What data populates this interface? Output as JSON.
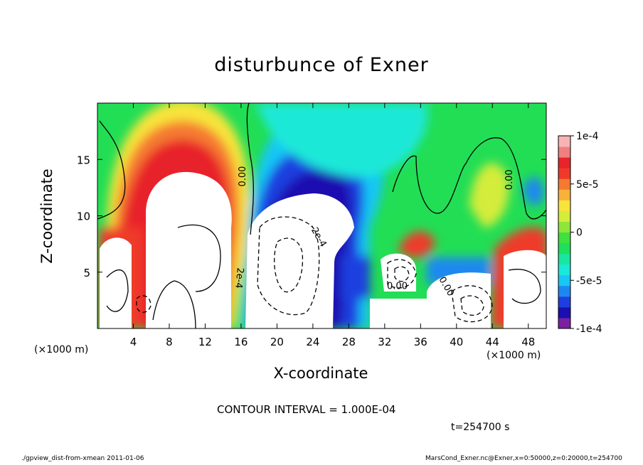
{
  "title": "disturbunce of Exner",
  "footer": {
    "left": "./gpview_dist-from-xmean  2011-01-06",
    "right": "MarsCond_Exner.nc@Exner,x=0:50000,z=0:20000,t=254700"
  },
  "chart_data": {
    "type": "heatmap",
    "title": "disturbunce of Exner",
    "xlabel": "X-coordinate",
    "ylabel": "Z-coordinate",
    "x_unit": "(×1000 m)",
    "xlim": [
      0,
      50
    ],
    "ylim": [
      0,
      20
    ],
    "x_ticks": [
      4,
      8,
      12,
      16,
      20,
      24,
      28,
      32,
      36,
      40,
      44,
      48
    ],
    "y_ticks": [
      5,
      10,
      15
    ],
    "colorbar": {
      "ticks": [
        {
          "value": 0.0001,
          "label": "1e-4"
        },
        {
          "value": 5e-05,
          "label": "5e-5"
        },
        {
          "value": 0,
          "label": "0"
        },
        {
          "value": -5e-05,
          "label": "-5e-5"
        },
        {
          "value": -0.0001,
          "label": "-1e-4"
        }
      ],
      "range": [
        -0.0001,
        0.0001
      ],
      "colors": [
        "#7b1fa2",
        "#1a0fb0",
        "#1f3fe0",
        "#1e88f0",
        "#19c6f5",
        "#1ae8d8",
        "#19e6a0",
        "#1fe05a",
        "#3fe040",
        "#8ee63a",
        "#d4ec3a",
        "#f8e43a",
        "#f8b23a",
        "#f57a30",
        "#ef3a2a",
        "#e8232a",
        "#f08080",
        "#f8b4b4"
      ]
    },
    "contour_interval": "CONTOUR INTERVAL = 1.000E-04",
    "contour_labels": [
      "0.00",
      "0.00",
      "-2e-4",
      "2e-4",
      "0.00",
      "0.00"
    ],
    "time": "t=254700 s"
  }
}
